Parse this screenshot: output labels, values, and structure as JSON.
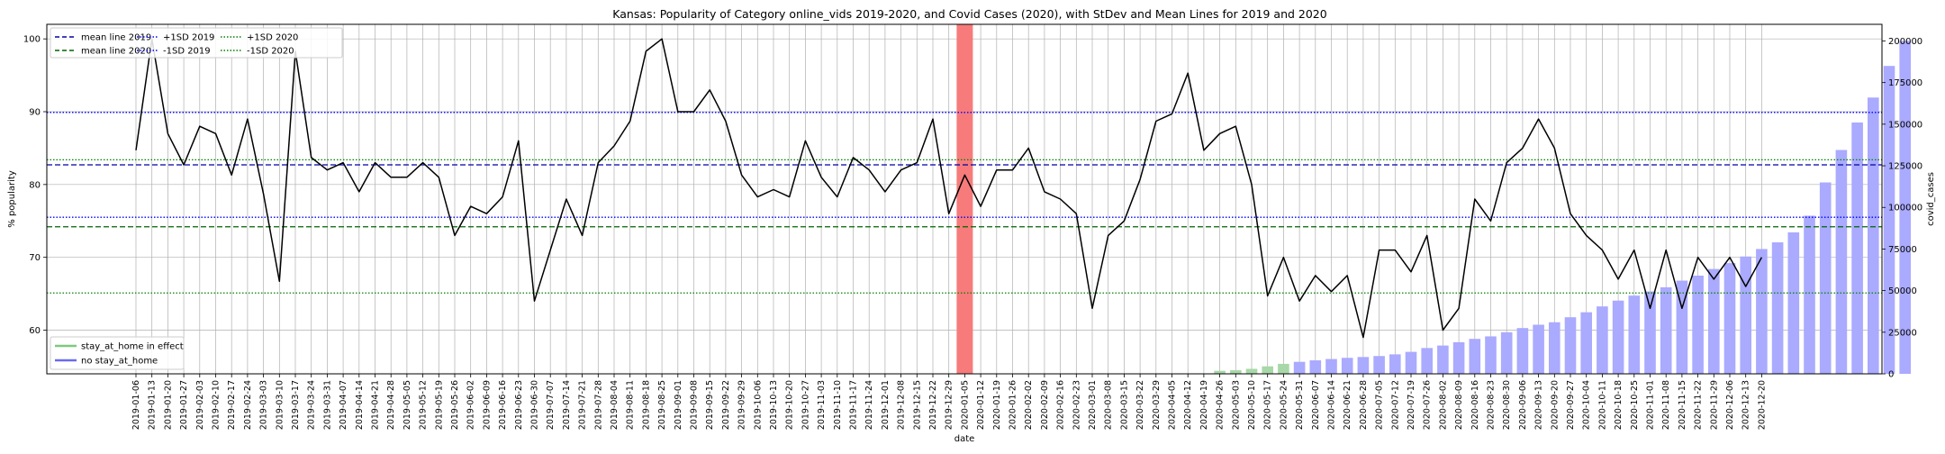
{
  "chart_data": {
    "type": "line+bar",
    "title": "Kansas: Popularity of Category online_vids 2019-2020, and Covid Cases (2020), with StDev and Mean Lines for 2019 and 2020",
    "xlabel": "date",
    "ylabel_left": "% popularity",
    "ylabel_right": "covid_cases",
    "ylim_left": [
      54,
      102
    ],
    "yticks_left": [
      60,
      70,
      80,
      90,
      100
    ],
    "ylim_right": [
      0,
      210000
    ],
    "yticks_right": [
      0,
      25000,
      50000,
      75000,
      100000,
      125000,
      150000,
      175000,
      200000
    ],
    "grid": true,
    "dates": [
      "2019-01-06",
      "2019-01-13",
      "2019-01-20",
      "2019-01-27",
      "2019-02-03",
      "2019-02-10",
      "2019-02-17",
      "2019-02-24",
      "2019-03-03",
      "2019-03-10",
      "2019-03-17",
      "2019-03-24",
      "2019-03-31",
      "2019-04-07",
      "2019-04-14",
      "2019-04-21",
      "2019-04-28",
      "2019-05-05",
      "2019-05-12",
      "2019-05-19",
      "2019-05-26",
      "2019-06-02",
      "2019-06-09",
      "2019-06-16",
      "2019-06-23",
      "2019-06-30",
      "2019-07-07",
      "2019-07-14",
      "2019-07-21",
      "2019-07-28",
      "2019-08-04",
      "2019-08-11",
      "2019-08-18",
      "2019-08-25",
      "2019-09-01",
      "2019-09-08",
      "2019-09-15",
      "2019-09-22",
      "2019-09-29",
      "2019-10-06",
      "2019-10-13",
      "2019-10-20",
      "2019-10-27",
      "2019-11-03",
      "2019-11-10",
      "2019-11-17",
      "2019-11-24",
      "2019-12-01",
      "2019-12-08",
      "2019-12-15",
      "2019-12-22",
      "2019-12-29",
      "2020-01-05",
      "2020-01-12",
      "2020-01-19",
      "2020-01-26",
      "2020-02-02",
      "2020-02-09",
      "2020-02-16",
      "2020-02-23",
      "2020-03-01",
      "2020-03-08",
      "2020-03-15",
      "2020-03-22",
      "2020-03-29",
      "2020-04-05",
      "2020-04-12",
      "2020-04-19",
      "2020-04-26",
      "2020-05-03",
      "2020-05-10",
      "2020-05-17",
      "2020-05-24",
      "2020-05-31",
      "2020-06-07",
      "2020-06-14",
      "2020-06-21",
      "2020-06-28",
      "2020-07-05",
      "2020-07-12",
      "2020-07-19",
      "2020-07-26",
      "2020-08-02",
      "2020-08-09",
      "2020-08-16",
      "2020-08-23",
      "2020-08-30",
      "2020-09-06",
      "2020-09-13",
      "2020-09-20",
      "2020-09-27",
      "2020-10-04",
      "2020-10-11",
      "2020-10-18",
      "2020-10-25",
      "2020-11-01",
      "2020-11-08",
      "2020-11-15",
      "2020-11-22",
      "2020-11-29",
      "2020-12-06",
      "2020-12-13",
      "2020-12-20"
    ],
    "tick_labels": [
      "2019-01-06",
      "2019-01-13",
      "2019-01-20",
      "2019-01-27",
      "2019-02-03",
      "2019-02-10",
      "2019-02-17",
      "2019-02-24",
      "2019-03-03",
      "2019-03-10",
      "2019-03-17",
      "2019-03-24",
      "2019-03-31",
      "2019-04-07",
      "2019-04-14",
      "2019-04-21",
      "2019-04-28",
      "2019-05-05",
      "2019-05-12",
      "2019-05-19",
      "2019-05-26",
      "2019-06-02",
      "2019-06-09",
      "2019-06-16",
      "2019-06-23",
      "2019-06-30",
      "2019-07-07",
      "2019-07-14",
      "2019-07-21",
      "2019-07-28",
      "2019-08-04",
      "2019-08-11",
      "2019-08-18",
      "2019-08-25",
      "2019-09-01",
      "2019-09-08",
      "2019-09-15",
      "2019-09-22",
      "2019-09-29",
      "2019-10-06",
      "2019-10-13",
      "2019-10-20",
      "2019-10-27",
      "2019-11-03",
      "2019-11-10",
      "2019-11-17",
      "2019-11-24",
      "2019-12-01",
      "2019-12-08",
      "2019-12-15",
      "2019-12-22",
      "2019-12-29",
      "2020-01-05",
      "2020-01-12",
      "2020-01-19",
      "2020-01-26",
      "2020-02-02",
      "2020-02-09",
      "2020-02-16",
      "2020-02-23",
      "2020-03-01",
      "2020-03-08",
      "2020-03-15",
      "2020-03-22",
      "2020-03-29",
      "2020-04-05",
      "2020-04-12",
      "2020-04-19",
      "2020-04-26",
      "2020-05-03",
      "2020-05-10",
      "2020-05-17",
      "2020-05-24",
      "2020-05-31",
      "2020-06-07",
      "2020-06-14",
      "2020-06-21",
      "2020-06-28",
      "2020-07-05",
      "2020-07-12",
      "2020-07-19",
      "2020-07-26",
      "2020-08-02",
      "2020-08-09",
      "2020-08-16",
      "2020-08-23",
      "2020-08-30",
      "2020-09-06",
      "2020-09-13",
      "2020-09-20",
      "2020-09-27",
      "2020-10-04",
      "2020-10-11",
      "2020-10-18",
      "2020-10-25",
      "2020-11-01",
      "2020-11-08",
      "2020-11-15",
      "2020-11-22",
      "2020-11-29",
      "2020-12-06",
      "2020-12-13",
      "2020-12-20"
    ],
    "popularity": [
      84.7,
      100,
      87,
      82.7,
      88,
      87,
      81.3,
      89,
      78.7,
      66.7,
      98.3,
      83.7,
      82,
      83,
      79,
      83,
      81,
      81,
      83,
      81,
      73,
      77,
      76,
      78.3,
      86,
      64,
      71,
      78,
      73,
      83,
      85.3,
      88.7,
      98.3,
      100,
      90,
      90,
      93,
      88.7,
      81.3,
      78.3,
      79.3,
      78.3,
      86,
      81,
      78.3,
      83.7,
      82,
      79,
      82,
      83,
      89,
      76,
      81.3,
      77,
      82,
      82,
      85,
      79,
      78,
      76,
      63,
      73,
      75,
      80.7,
      88.7,
      89.7,
      95.3,
      84.7,
      87,
      88,
      80,
      64.7,
      70,
      64,
      67.5,
      65.3,
      67.5,
      59,
      71,
      71,
      68,
      73,
      60,
      63,
      78,
      75,
      83,
      85,
      89,
      85,
      76,
      73,
      71,
      67,
      71,
      63,
      71,
      63,
      70,
      67,
      70,
      66,
      70
    ],
    "covid_start_index": 68,
    "covid_cases": [
      1800,
      2200,
      3000,
      4500,
      6000,
      7200,
      8100,
      8900,
      9600,
      10100,
      10700,
      11700,
      13200,
      15500,
      17000,
      19000,
      21000,
      22500,
      25000,
      27500,
      29500,
      31000,
      34000,
      37000,
      40500,
      44000,
      47000,
      49500,
      52000,
      56000,
      59000,
      63000,
      66500,
      70500,
      75000,
      79000,
      85000,
      95000,
      115000,
      134500,
      151000,
      166000,
      185000,
      200000
    ],
    "stay_at_home_count": 5,
    "mean_2019": 82.7,
    "sd_plus_2019": 89.9,
    "sd_minus_2019": 75.5,
    "mean_2020": 74.2,
    "sd_plus_2020": 83.4,
    "sd_minus_2020": 65.1,
    "highlight_date": "2020-01-05",
    "legend_upper": [
      {
        "label": "mean line 2019",
        "color": "#0000aa",
        "style": "dashed"
      },
      {
        "label": "mean line 2020",
        "color": "#006400",
        "style": "dashed"
      },
      {
        "label": "+1SD 2019",
        "color": "#0000ff",
        "style": "dotted"
      },
      {
        "label": "-1SD 2019",
        "color": "#0000ff",
        "style": "dotted"
      },
      {
        "label": "+1SD 2020",
        "color": "#008000",
        "style": "dotted"
      },
      {
        "label": "-1SD 2020",
        "color": "#008000",
        "style": "dotted"
      }
    ],
    "legend_lower": [
      {
        "label": "stay_at_home in effect",
        "color": "#7fc97f"
      },
      {
        "label": "no stay_at_home",
        "color": "#6b6bf0"
      }
    ],
    "colors": {
      "line": "#000000",
      "mean_2019": "#0000aa",
      "mean_2020": "#006400",
      "sd_2019": "#0000ff",
      "sd_2020": "#008000",
      "bar_stay": "#a8d8a8",
      "bar_no_stay": "#aaaaff",
      "highlight": "#f77b7b",
      "grid": "#b0b0b0"
    }
  }
}
